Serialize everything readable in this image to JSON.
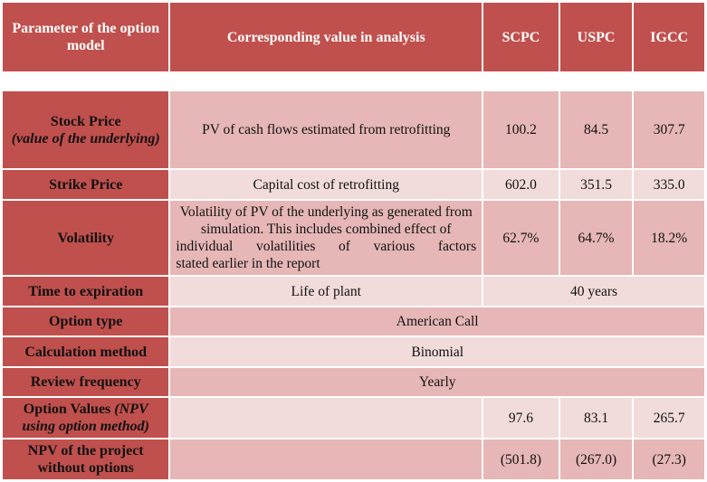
{
  "header": {
    "param_label": "Parameter of the option model",
    "value_label": "Corresponding value in analysis",
    "col_scpc": "SCPC",
    "col_uspc": "USPC",
    "col_igcc": "IGCC"
  },
  "rows": {
    "stock": {
      "param": "Stock Price",
      "param_sub": "(value of the underlying)",
      "value": "PV of cash flows estimated from retrofitting",
      "scpc": "100.2",
      "uspc": "84.5",
      "igcc": "307.7"
    },
    "strike": {
      "param": "Strike Price",
      "value": "Capital cost of retrofitting",
      "scpc": "602.0",
      "uspc": "351.5",
      "igcc": "335.0"
    },
    "volatility": {
      "param": "Volatility",
      "value_main": "Volatility of PV of the underlying as generated from simulation. This includes combined effect of individual volatilities of various factors",
      "value_last": "stated earlier in the report",
      "scpc": "62.7%",
      "uspc": "64.7%",
      "igcc": "18.2%"
    },
    "time": {
      "param": "Time to expiration",
      "value": "Life of plant",
      "span_value": "40 years"
    },
    "option_type": {
      "param": "Option type",
      "value": "American Call"
    },
    "calc_method": {
      "param": "Calculation method",
      "value": "Binomial"
    },
    "review": {
      "param": "Review frequency",
      "value": "Yearly"
    },
    "option_values": {
      "param": "Option Values",
      "param_italic": "(NPV using option method)",
      "value": "",
      "scpc": "97.6",
      "uspc": "83.1",
      "igcc": "265.7"
    },
    "npv": {
      "param": "NPV of the project without options",
      "value": "",
      "scpc": "(501.8)",
      "uspc": "(267.0)",
      "igcc": "(27.3)"
    }
  },
  "colors": {
    "header_bg": "#c0504d",
    "dark_cell": "#e6b7b6",
    "light_cell": "#f2dcdb"
  }
}
